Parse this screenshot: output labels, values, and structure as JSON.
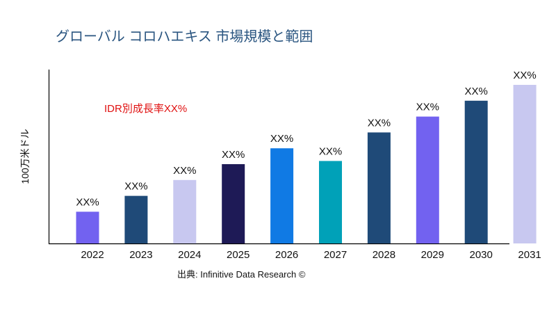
{
  "chart_data": {
    "type": "bar",
    "title": "グローバル コロハエキス 市場規模と範囲",
    "ylabel": "100万米ドル",
    "xlabel": "",
    "categories": [
      "2022",
      "2023",
      "2024",
      "2025",
      "2026",
      "2027",
      "2028",
      "2029",
      "2030",
      "2031"
    ],
    "values": [
      20,
      30,
      40,
      50,
      60,
      52,
      70,
      80,
      90,
      100
    ],
    "data_labels": [
      "XX%",
      "XX%",
      "XX%",
      "XX%",
      "XX%",
      "XX%",
      "XX%",
      "XX%",
      "XX%",
      "XX%"
    ],
    "colors": [
      "#7262f0",
      "#1f4a78",
      "#c8c8f0",
      "#1e1a56",
      "#107ae4",
      "#00a1b8",
      "#1f4a78",
      "#7262f0",
      "#1f4a78",
      "#c8c8f0"
    ],
    "annotation": "IDR別成長率XX%",
    "annotation_color": "#e01010",
    "source": "出典: Infinitive Data Research ©",
    "ylim": [
      0,
      110
    ],
    "grid": false,
    "legend": "none"
  }
}
